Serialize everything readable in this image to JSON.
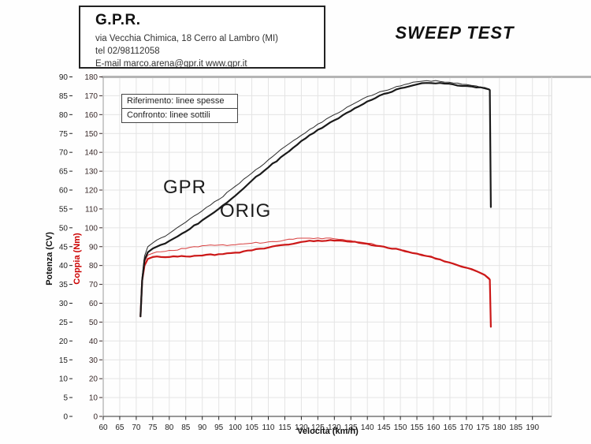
{
  "header": {
    "company": "G.P.R.",
    "address": "via Vecchia Chimica, 18 Cerro al Lambro (MI)",
    "phone": "tel 02/98112058",
    "email_line": "E-mail marco.arena@gpr.it  www.gpr.it"
  },
  "title": "SWEEP TEST",
  "legend": {
    "row1": "Riferimento: linee spesse",
    "row2": "Confronto: linee sottili"
  },
  "annotations": {
    "gpr": "GPR",
    "orig": "ORIG"
  },
  "axes": {
    "x_label": "Velocità (km/h)",
    "y_left_power_label": "Potenza (CV)",
    "y_left_torque_label": "Coppia (Nm)",
    "x_ticks": [
      60,
      65,
      70,
      75,
      80,
      85,
      90,
      95,
      100,
      105,
      110,
      115,
      120,
      125,
      130,
      135,
      140,
      145,
      150,
      155,
      160,
      165,
      170,
      175,
      180,
      185,
      190
    ],
    "y_ticks_cv": [
      90,
      85,
      80,
      75,
      70,
      65,
      60,
      55,
      50,
      45,
      40,
      35,
      30,
      25,
      20,
      15,
      10,
      5,
      0
    ],
    "y_ticks_nm": [
      180,
      170,
      160,
      150,
      140,
      130,
      120,
      110,
      100,
      90,
      80,
      70,
      60,
      50,
      40,
      30,
      20,
      10,
      0
    ]
  },
  "colors": {
    "power_curve": "#1a1a1a",
    "torque_curve": "#cc1818",
    "torque_curve_thin": "#d84040",
    "grid": "#e4e4e4",
    "frame_top": "#b5b5b5",
    "coppia_label": "#cc0000"
  },
  "chart_data": {
    "type": "line",
    "title": "SWEEP TEST",
    "xlabel": "Velocità (km/h)",
    "ylabel_left_power": "Potenza (CV)",
    "ylabel_left_torque": "Coppia (Nm)",
    "x_range_kmh": [
      60,
      196
    ],
    "y_range_cv": [
      0,
      90
    ],
    "y_range_nm": [
      0,
      180
    ],
    "grid": true,
    "legend_note": "Riferimento: linee spesse / Confronto: linee sottili",
    "x_kmh": [
      71.3,
      71.8,
      72.5,
      73.5,
      75,
      77.5,
      80,
      85,
      90,
      95,
      100,
      105,
      110,
      115,
      120,
      125,
      130,
      135,
      140,
      145,
      150,
      155,
      158,
      162,
      166,
      170,
      173,
      175.5,
      176.8,
      177.1,
      177.4
    ],
    "series": [
      {
        "name": "Coppia GPR (confronto, linea sottile)",
        "unit": "Nm",
        "color": "#d84040",
        "width": 1,
        "y": [
          53,
          74,
          82,
          85.5,
          86.5,
          87.3,
          88,
          89,
          90.5,
          90.8,
          91,
          91.8,
          92.5,
          93.5,
          94.5,
          94.6,
          94.2,
          93.2,
          91.8,
          90.2,
          88.3,
          86.3,
          85,
          83.2,
          81,
          78.8,
          77,
          75.3,
          73.5,
          73,
          48
        ]
      },
      {
        "name": "Coppia ORIG (riferimento, linea spessa)",
        "unit": "Nm",
        "color": "#cc1818",
        "width": 2.2,
        "y": [
          53,
          72,
          80,
          83.5,
          84.5,
          84.5,
          84.5,
          84.8,
          85.3,
          86,
          86.8,
          88,
          89.5,
          91,
          92.5,
          93.2,
          93.2,
          92.6,
          91.5,
          90,
          88.3,
          86.3,
          85,
          83.2,
          81,
          78.8,
          77,
          75,
          73,
          72.5,
          47.5
        ]
      },
      {
        "name": "Potenza GPR (confronto, linea sottile)",
        "unit": "CV",
        "color": "#2a2a2a",
        "width": 1,
        "y": [
          26.5,
          37,
          42.5,
          45,
          46,
          47.3,
          48.5,
          51.5,
          54.5,
          57.5,
          61,
          64.5,
          68,
          71.5,
          74.5,
          77.5,
          80,
          82.5,
          84.8,
          86.3,
          87.6,
          88.7,
          89,
          88.8,
          88.4,
          88,
          87.6,
          87.2,
          86.8,
          86.6,
          56.5
        ]
      },
      {
        "name": "Potenza ORIG (riferimento, linea spessa)",
        "unit": "CV",
        "color": "#1a1a1a",
        "width": 2.2,
        "y": [
          26.5,
          36,
          41.5,
          43.5,
          44.5,
          45.5,
          46.5,
          49,
          52,
          55,
          58.5,
          62.5,
          66,
          69.5,
          73,
          76,
          78.5,
          81,
          83.5,
          85.5,
          87,
          88,
          88.4,
          88.4,
          88,
          87.6,
          87.2,
          87,
          86.7,
          86.5,
          55.5
        ]
      }
    ],
    "peaks": {
      "potenza_gpr_max_cv": 89,
      "potenza_orig_max_cv": 88.4,
      "coppia_gpr_max_nm": 94.6,
      "coppia_orig_max_nm": 93.2,
      "cutoff_kmh": 177
    }
  }
}
